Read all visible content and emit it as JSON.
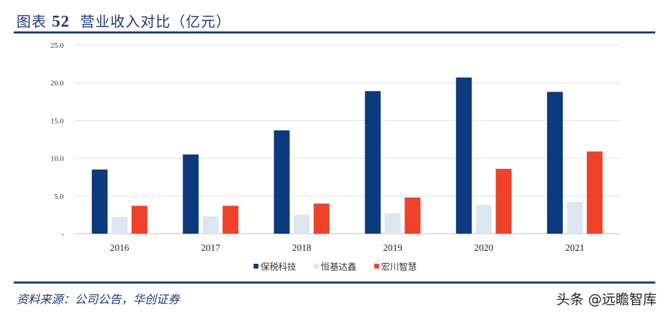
{
  "header": {
    "figure_label": "图表",
    "figure_number": "52",
    "title": "营业收入对比（亿元）"
  },
  "footer": {
    "source": "资料来源：公司公告，华创证券",
    "watermark": "头条 @远瞻智库"
  },
  "chart_data": {
    "type": "bar",
    "title": "营业收入对比（亿元）",
    "categories": [
      "2016",
      "2017",
      "2018",
      "2019",
      "2020",
      "2021"
    ],
    "series": [
      {
        "name": "保税科技",
        "color": "#0b3a7e",
        "values": [
          8.5,
          10.5,
          13.7,
          18.9,
          20.7,
          18.8
        ]
      },
      {
        "name": "恒基达鑫",
        "color": "#dce6f0",
        "values": [
          2.2,
          2.3,
          2.5,
          2.7,
          3.8,
          4.2
        ]
      },
      {
        "name": "宏川智慧",
        "color": "#f0412b",
        "values": [
          3.7,
          3.7,
          4.0,
          4.8,
          8.6,
          10.9
        ]
      }
    ],
    "ylim": [
      0,
      25
    ],
    "yticks": [
      "-",
      "5.0",
      "10.0",
      "15.0",
      "20.0",
      "25.0"
    ],
    "grid": true,
    "legend": "bottom"
  }
}
